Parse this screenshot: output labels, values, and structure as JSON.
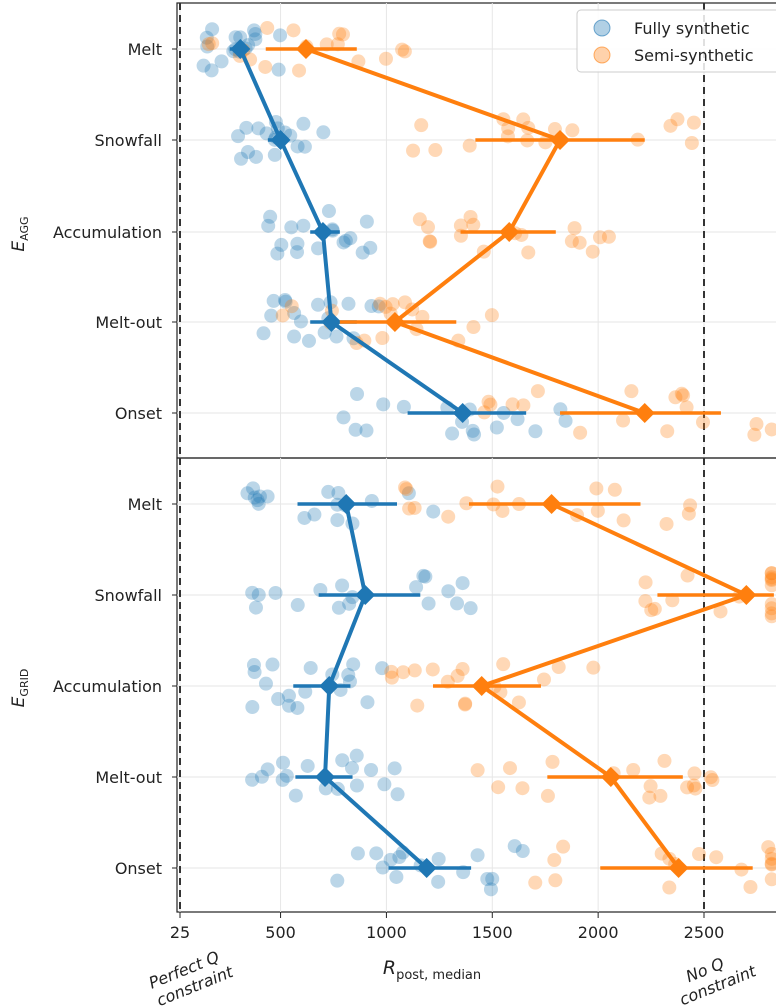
{
  "chart_data": [
    {
      "panel": "top",
      "type": "scatter",
      "ylabel_main": "E",
      "ylabel_sub": "AGG",
      "categories": [
        "Melt",
        "Snowfall",
        "Accumulation",
        "Melt-out",
        "Onset"
      ],
      "legend": {
        "placement": "top-right",
        "entries": [
          "Fully synthetic",
          "Semi-synthetic"
        ]
      },
      "series": [
        {
          "name": "Fully synthetic",
          "color": "#1f77b4",
          "medians": [
            310,
            500,
            700,
            740,
            1360
          ],
          "err_low": [
            260,
            440,
            640,
            640,
            1100
          ],
          "err_high": [
            330,
            530,
            780,
            860,
            1660
          ]
        },
        {
          "name": "Semi-synthetic",
          "color": "#ff7f0e",
          "medians": [
            620,
            1820,
            1580,
            1040,
            2220
          ],
          "err_low": [
            430,
            1420,
            1350,
            780,
            1820
          ],
          "err_high": [
            860,
            2220,
            1800,
            1330,
            2580
          ]
        }
      ],
      "xlim": [
        10,
        2840
      ],
      "grid": true
    },
    {
      "panel": "bottom",
      "type": "scatter",
      "ylabel_main": "E",
      "ylabel_sub": "GRID",
      "categories": [
        "Melt",
        "Snowfall",
        "Accumulation",
        "Melt-out",
        "Onset"
      ],
      "series": [
        {
          "name": "Fully synthetic",
          "color": "#1f77b4",
          "medians": [
            810,
            900,
            730,
            710,
            1190
          ],
          "err_low": [
            580,
            680,
            560,
            570,
            1010
          ],
          "err_high": [
            1050,
            1160,
            830,
            840,
            1400
          ]
        },
        {
          "name": "Semi-synthetic",
          "color": "#ff7f0e",
          "medians": [
            1780,
            2700,
            1450,
            2060,
            2380
          ],
          "err_low": [
            1390,
            2280,
            1220,
            1760,
            2010
          ],
          "err_high": [
            2200,
            2830,
            1730,
            2400,
            2730
          ]
        }
      ],
      "xlim": [
        10,
        2840
      ],
      "grid": true
    }
  ],
  "xaxis": {
    "ticks": [
      25,
      500,
      1000,
      1500,
      2000,
      2500
    ],
    "tick_labels": [
      "25",
      "500",
      "1000",
      "1500",
      "2000",
      "2500"
    ],
    "xlabel_main": "R",
    "xlabel_sub": "post, median",
    "vlines": [
      25,
      2500
    ],
    "left_note": [
      "Perfect Q",
      "constraint"
    ],
    "right_note": [
      "No Q",
      "constraint"
    ]
  }
}
